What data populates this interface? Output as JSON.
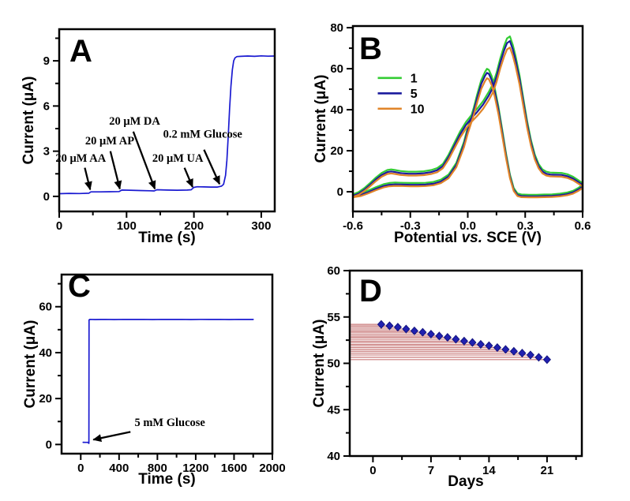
{
  "figure": {
    "background": "#ffffff",
    "frame_color": "#000000",
    "description": "Four-panel electrochemical glucose sensor figure"
  },
  "chart_data": [
    {
      "id": "A",
      "panel_label": "A",
      "type": "line",
      "xlabel": "Time (s)",
      "ylabel": "Current (μA)",
      "xlim": [
        0,
        320
      ],
      "ylim": [
        -1,
        11.1
      ],
      "xticks": {
        "values": [
          0,
          100,
          200,
          300
        ],
        "labels": [
          "0",
          "100",
          "200",
          "300"
        ],
        "minor": [
          50,
          150,
          250
        ]
      },
      "yticks": {
        "values": [
          0,
          3,
          6,
          9
        ],
        "labels": [
          "0",
          "3",
          "6",
          "9"
        ],
        "minor": [
          1.5,
          4.5,
          7.5,
          10.5
        ]
      },
      "annotation_color": "#cc1a1a",
      "series": [
        {
          "name": "amperometric-response",
          "color": "#1a1ad1",
          "width": 1.7,
          "points": [
            [
              0,
              0.18
            ],
            [
              15,
              0.2
            ],
            [
              30,
              0.19
            ],
            [
              44,
              0.21
            ],
            [
              47,
              0.3
            ],
            [
              60,
              0.3
            ],
            [
              75,
              0.31
            ],
            [
              89,
              0.32
            ],
            [
              93,
              0.42
            ],
            [
              105,
              0.41
            ],
            [
              120,
              0.39
            ],
            [
              135,
              0.37
            ],
            [
              141,
              0.36
            ],
            [
              145,
              0.44
            ],
            [
              160,
              0.42
            ],
            [
              175,
              0.41
            ],
            [
              190,
              0.42
            ],
            [
              196,
              0.44
            ],
            [
              200,
              0.6
            ],
            [
              205,
              0.64
            ],
            [
              215,
              0.63
            ],
            [
              225,
              0.62
            ],
            [
              235,
              0.62
            ],
            [
              241,
              0.68
            ],
            [
              244,
              0.8
            ],
            [
              247,
              1.4
            ],
            [
              249,
              2.4
            ],
            [
              251,
              4.0
            ],
            [
              253,
              5.8
            ],
            [
              255,
              7.3
            ],
            [
              257,
              8.4
            ],
            [
              259,
              9.0
            ],
            [
              261,
              9.2
            ],
            [
              264,
              9.28
            ],
            [
              270,
              9.3
            ],
            [
              280,
              9.32
            ],
            [
              290,
              9.3
            ],
            [
              300,
              9.33
            ],
            [
              310,
              9.31
            ],
            [
              320,
              9.32
            ]
          ]
        }
      ],
      "annotations": [
        {
          "text": "20 μM AA",
          "x": 32,
          "y": 2.3,
          "arrow": [
            38,
            1.9,
            46,
            0.45
          ]
        },
        {
          "text": "20 μM AP",
          "x": 75,
          "y": 3.45,
          "arrow": [
            76,
            3.0,
            90,
            0.5
          ]
        },
        {
          "text": "20 μM DA",
          "x": 112,
          "y": 4.75,
          "arrow": [
            110,
            4.3,
            142,
            0.5
          ]
        },
        {
          "text": "20 μM UA",
          "x": 176,
          "y": 2.3,
          "arrow": [
            186,
            1.9,
            198,
            0.62
          ]
        },
        {
          "text": "0.2 mM Glucose",
          "x": 213,
          "y": 3.9,
          "arrow": [
            215,
            3.1,
            238,
            0.82
          ]
        }
      ]
    },
    {
      "id": "B",
      "panel_label": "B",
      "type": "line",
      "xlabel": "Potential vs. SCE (V)",
      "xlabel_parts": [
        {
          "text": "Potential ",
          "italic": false
        },
        {
          "text": "vs.",
          "italic": true
        },
        {
          "text": " SCE (V)",
          "italic": false
        }
      ],
      "ylabel": "Current (μA)",
      "xlim": [
        -0.6,
        0.6
      ],
      "ylim": [
        -9.6,
        80.8
      ],
      "xticks": {
        "values": [
          -0.6,
          -0.3,
          0.0,
          0.3,
          0.6
        ],
        "labels": [
          "-0.6",
          "-0.3",
          "0.0",
          "0.3",
          "0.6"
        ],
        "minor": [
          -0.45,
          -0.15,
          0.15,
          0.45
        ]
      },
      "yticks": {
        "values": [
          0,
          20,
          40,
          60,
          80
        ],
        "labels": [
          "0",
          "20",
          "40",
          "60",
          "80"
        ],
        "minor": [
          10,
          30,
          50,
          70
        ]
      },
      "legend": {
        "x1": -0.47,
        "x2": -0.345,
        "label_x": -0.3,
        "rows_y": [
          55.5,
          48,
          40.5
        ],
        "position": "upper-left"
      },
      "base_curve": [
        [
          -0.6,
          -2.2
        ],
        [
          -0.56,
          -1.6
        ],
        [
          -0.52,
          -0.2
        ],
        [
          -0.48,
          1.4
        ],
        [
          -0.44,
          2.8
        ],
        [
          -0.41,
          3.4
        ],
        [
          -0.38,
          3.6
        ],
        [
          -0.34,
          3.5
        ],
        [
          -0.3,
          3.4
        ],
        [
          -0.26,
          3.4
        ],
        [
          -0.22,
          3.5
        ],
        [
          -0.18,
          3.9
        ],
        [
          -0.14,
          5.0
        ],
        [
          -0.1,
          7.5
        ],
        [
          -0.06,
          13
        ],
        [
          -0.02,
          23
        ],
        [
          0.0,
          30
        ],
        [
          0.03,
          39
        ],
        [
          0.05,
          46
        ],
        [
          0.07,
          52.5
        ],
        [
          0.09,
          56.5
        ],
        [
          0.1,
          58
        ],
        [
          0.11,
          57.5
        ],
        [
          0.125,
          54.5
        ],
        [
          0.14,
          49
        ],
        [
          0.16,
          40
        ],
        [
          0.18,
          29
        ],
        [
          0.2,
          17.5
        ],
        [
          0.22,
          7.5
        ],
        [
          0.24,
          1.0
        ],
        [
          0.26,
          -1.6
        ],
        [
          0.28,
          -2.1
        ],
        [
          0.32,
          -2.2
        ],
        [
          0.36,
          -2.2
        ],
        [
          0.4,
          -2.1
        ],
        [
          0.44,
          -2.0
        ],
        [
          0.48,
          -1.7
        ],
        [
          0.52,
          -1.1
        ],
        [
          0.55,
          -0.3
        ],
        [
          0.58,
          1.2
        ],
        [
          0.6,
          2.6
        ],
        [
          0.6,
          3.3
        ],
        [
          0.58,
          4.6
        ],
        [
          0.55,
          6.4
        ],
        [
          0.52,
          7.6
        ],
        [
          0.49,
          8.2
        ],
        [
          0.46,
          8.3
        ],
        [
          0.43,
          8.4
        ],
        [
          0.41,
          8.8
        ],
        [
          0.39,
          9.9
        ],
        [
          0.37,
          12.5
        ],
        [
          0.35,
          17
        ],
        [
          0.33,
          24
        ],
        [
          0.31,
          33
        ],
        [
          0.29,
          44
        ],
        [
          0.27,
          55
        ],
        [
          0.25,
          64
        ],
        [
          0.235,
          69.5
        ],
        [
          0.22,
          73.5
        ],
        [
          0.205,
          72.5
        ],
        [
          0.19,
          69
        ],
        [
          0.17,
          63
        ],
        [
          0.15,
          56
        ],
        [
          0.13,
          50.5
        ],
        [
          0.11,
          47
        ],
        [
          0.08,
          42.5
        ],
        [
          0.05,
          39
        ],
        [
          0.02,
          36
        ],
        [
          -0.01,
          32.5
        ],
        [
          -0.04,
          28
        ],
        [
          -0.07,
          22.5
        ],
        [
          -0.1,
          17
        ],
        [
          -0.13,
          12.5
        ],
        [
          -0.16,
          10.5
        ],
        [
          -0.19,
          9.6
        ],
        [
          -0.23,
          9.0
        ],
        [
          -0.27,
          8.8
        ],
        [
          -0.31,
          8.8
        ],
        [
          -0.35,
          9.1
        ],
        [
          -0.38,
          9.6
        ],
        [
          -0.4,
          9.9
        ],
        [
          -0.42,
          9.6
        ],
        [
          -0.45,
          8.2
        ],
        [
          -0.48,
          6.0
        ],
        [
          -0.51,
          3.4
        ],
        [
          -0.54,
          1.0
        ],
        [
          -0.57,
          -0.9
        ],
        [
          -0.6,
          -2.0
        ]
      ],
      "series": [
        {
          "name": "cycle-1",
          "label": "1",
          "color": "#33cc33",
          "scale": 1.02,
          "offset": 0.8,
          "width": 2.2
        },
        {
          "name": "cycle-5",
          "label": "5",
          "color": "#1c1c9e",
          "scale": 1.0,
          "offset": 0.0,
          "width": 2.2
        },
        {
          "name": "cycle-10",
          "label": "10",
          "color": "#e08428",
          "scale": 0.965,
          "offset": -0.6,
          "width": 2.2
        }
      ]
    },
    {
      "id": "C",
      "panel_label": "C",
      "type": "line",
      "xlabel": "Time (s)",
      "ylabel": "Current (μA)",
      "xlim": [
        -200,
        2000
      ],
      "ylim": [
        -4,
        74
      ],
      "xticks": {
        "values": [
          0,
          400,
          800,
          1200,
          1600,
          2000
        ],
        "labels": [
          "0",
          "400",
          "800",
          "1200",
          "1600",
          "2000"
        ],
        "minor": [
          200,
          600,
          1000,
          1400,
          1800
        ]
      },
      "yticks": {
        "values": [
          0,
          20,
          40,
          60
        ],
        "labels": [
          "0",
          "20",
          "40",
          "60"
        ],
        "minor": [
          10,
          30,
          50,
          70
        ]
      },
      "annotation_color": "#cc1a1a",
      "series": [
        {
          "name": "stability-trace",
          "color": "#1a1ad1",
          "width": 1.7,
          "points": [
            [
              25,
              0.95
            ],
            [
              50,
              0.9
            ],
            [
              78,
              0.92
            ],
            [
              83,
              0.55
            ],
            [
              85,
              0.5
            ],
            [
              86,
              30
            ],
            [
              87,
              54.2
            ],
            [
              95,
              54.5
            ],
            [
              150,
              54.4
            ],
            [
              250,
              54.5
            ],
            [
              350,
              54.4
            ],
            [
              450,
              54.5
            ],
            [
              550,
              54.45
            ],
            [
              650,
              54.5
            ],
            [
              750,
              54.4
            ],
            [
              850,
              54.5
            ],
            [
              950,
              54.45
            ],
            [
              1050,
              54.5
            ],
            [
              1150,
              54.4
            ],
            [
              1250,
              54.5
            ],
            [
              1350,
              54.45
            ],
            [
              1450,
              54.5
            ],
            [
              1550,
              54.4
            ],
            [
              1650,
              54.5
            ],
            [
              1750,
              54.45
            ],
            [
              1800,
              54.45
            ]
          ]
        }
      ],
      "annotations": [
        {
          "text": "5 mM Glucose",
          "x": 930,
          "y": 8,
          "arrow": [
            519,
            5.5,
            132,
            2.1
          ]
        }
      ]
    },
    {
      "id": "D",
      "panel_label": "D",
      "type": "scatter",
      "xlabel": "Days",
      "ylabel": "Current (μA)",
      "xlim": [
        -2.8,
        25.2
      ],
      "ylim": [
        40,
        60
      ],
      "xticks": {
        "values": [
          0,
          7,
          14,
          21
        ],
        "labels": [
          "0",
          "7",
          "14",
          "21"
        ],
        "minor": [
          3.5,
          10.5,
          17.5,
          24.5
        ]
      },
      "yticks": {
        "values": [
          40,
          45,
          50,
          55,
          60
        ],
        "labels": [
          "40",
          "45",
          "50",
          "55",
          "60"
        ],
        "minor": [
          42.5,
          47.5,
          52.5,
          57.5
        ]
      },
      "droplines": {
        "color": "#c87a7a",
        "width": 1.2
      },
      "series": [
        {
          "name": "long-term-stability",
          "marker": "diamond",
          "color": "#2020b0",
          "edge": "#151580",
          "x": [
            1,
            2,
            3,
            4,
            5,
            6,
            7,
            8,
            9,
            10,
            11,
            12,
            13,
            14,
            15,
            16,
            17,
            18,
            19,
            20,
            21
          ],
          "y": [
            54.2,
            54.05,
            53.9,
            53.7,
            53.5,
            53.35,
            53.15,
            52.95,
            52.8,
            52.6,
            52.4,
            52.25,
            52.05,
            51.9,
            51.7,
            51.5,
            51.3,
            51.1,
            50.9,
            50.65,
            50.4
          ]
        }
      ]
    }
  ]
}
